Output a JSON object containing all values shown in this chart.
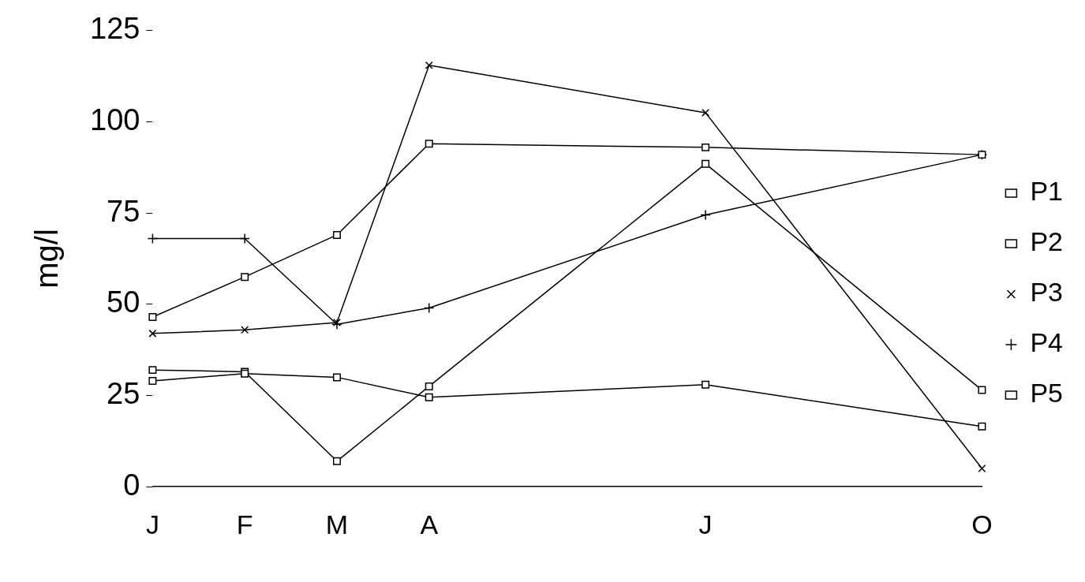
{
  "chart_data": {
    "type": "line",
    "ylabel": "mg/l",
    "categories": [
      "J",
      "F",
      "M",
      "A",
      null,
      null,
      "J",
      null,
      null,
      "O"
    ],
    "series": [
      {
        "name": "P1",
        "color": "#000000",
        "marker": "square",
        "values": [
          29,
          31,
          30,
          24.5,
          null,
          null,
          28,
          null,
          null,
          16.5
        ]
      },
      {
        "name": "P2",
        "color": "#000000",
        "marker": "square",
        "values": [
          46.5,
          57.5,
          69,
          94,
          null,
          null,
          93,
          null,
          null,
          91
        ]
      },
      {
        "name": "P3",
        "color": "#000000",
        "marker": "cross",
        "values": [
          42,
          43,
          45,
          115.5,
          null,
          null,
          102.5,
          null,
          null,
          5
        ]
      },
      {
        "name": "P4",
        "color": "#000000",
        "marker": "plus",
        "values": [
          68,
          68,
          44.5,
          49,
          null,
          null,
          74.5,
          null,
          null,
          91
        ]
      },
      {
        "name": "P5",
        "color": "#000000",
        "marker": "square",
        "values": [
          32,
          31.5,
          7,
          27.5,
          null,
          null,
          88.5,
          null,
          null,
          26.5
        ]
      }
    ],
    "ylim": [
      0,
      125
    ],
    "yticks": [
      0,
      25,
      50,
      75,
      100,
      125
    ],
    "grid": false,
    "legend": "right",
    "line_style": "solid"
  }
}
